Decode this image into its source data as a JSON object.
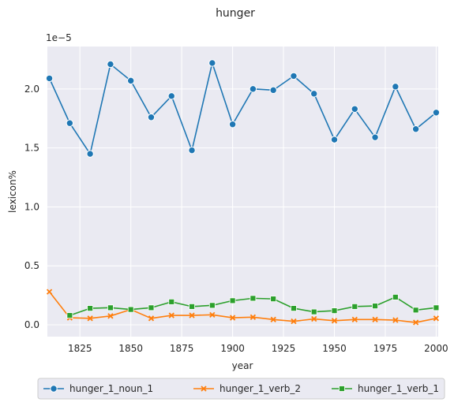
{
  "chart_data": {
    "type": "line",
    "title": "hunger",
    "xlabel": "year",
    "ylabel": "lexicon%",
    "y_offset_label": "1e−5",
    "xlim": [
      1809,
      2001
    ],
    "ylim": [
      -0.1,
      2.36
    ],
    "xticks": [
      1825,
      1850,
      1875,
      1900,
      1925,
      1950,
      1975,
      2000
    ],
    "yticks": [
      0.0,
      0.5,
      1.0,
      1.5,
      2.0
    ],
    "grid": true,
    "legend_position": "bottom-center",
    "x": [
      1810,
      1820,
      1830,
      1840,
      1850,
      1860,
      1870,
      1880,
      1890,
      1900,
      1910,
      1920,
      1930,
      1940,
      1950,
      1960,
      1970,
      1980,
      1990,
      2000
    ],
    "series": [
      {
        "name": "hunger_1_noun_1",
        "color": "#1f77b4",
        "marker": "circle",
        "values": [
          2.09,
          1.71,
          1.45,
          2.21,
          2.07,
          1.76,
          1.94,
          1.48,
          2.22,
          1.7,
          2.0,
          1.99,
          2.11,
          1.96,
          1.57,
          1.83,
          1.59,
          2.02,
          1.66,
          1.8
        ]
      },
      {
        "name": "hunger_1_verb_2",
        "color": "#ff7f0e",
        "marker": "x",
        "values": [
          0.28,
          0.06,
          0.055,
          0.075,
          0.13,
          0.055,
          0.08,
          0.08,
          0.085,
          0.06,
          0.065,
          0.045,
          0.03,
          0.05,
          0.035,
          0.045,
          0.045,
          0.04,
          0.02,
          0.055
        ]
      },
      {
        "name": "hunger_1_verb_1",
        "color": "#2ca02c",
        "marker": "square",
        "values": [
          null,
          0.08,
          0.14,
          0.145,
          0.13,
          0.145,
          0.195,
          0.155,
          0.165,
          0.205,
          0.225,
          0.22,
          0.14,
          0.11,
          0.12,
          0.155,
          0.16,
          0.235,
          0.125,
          0.145
        ]
      }
    ]
  }
}
